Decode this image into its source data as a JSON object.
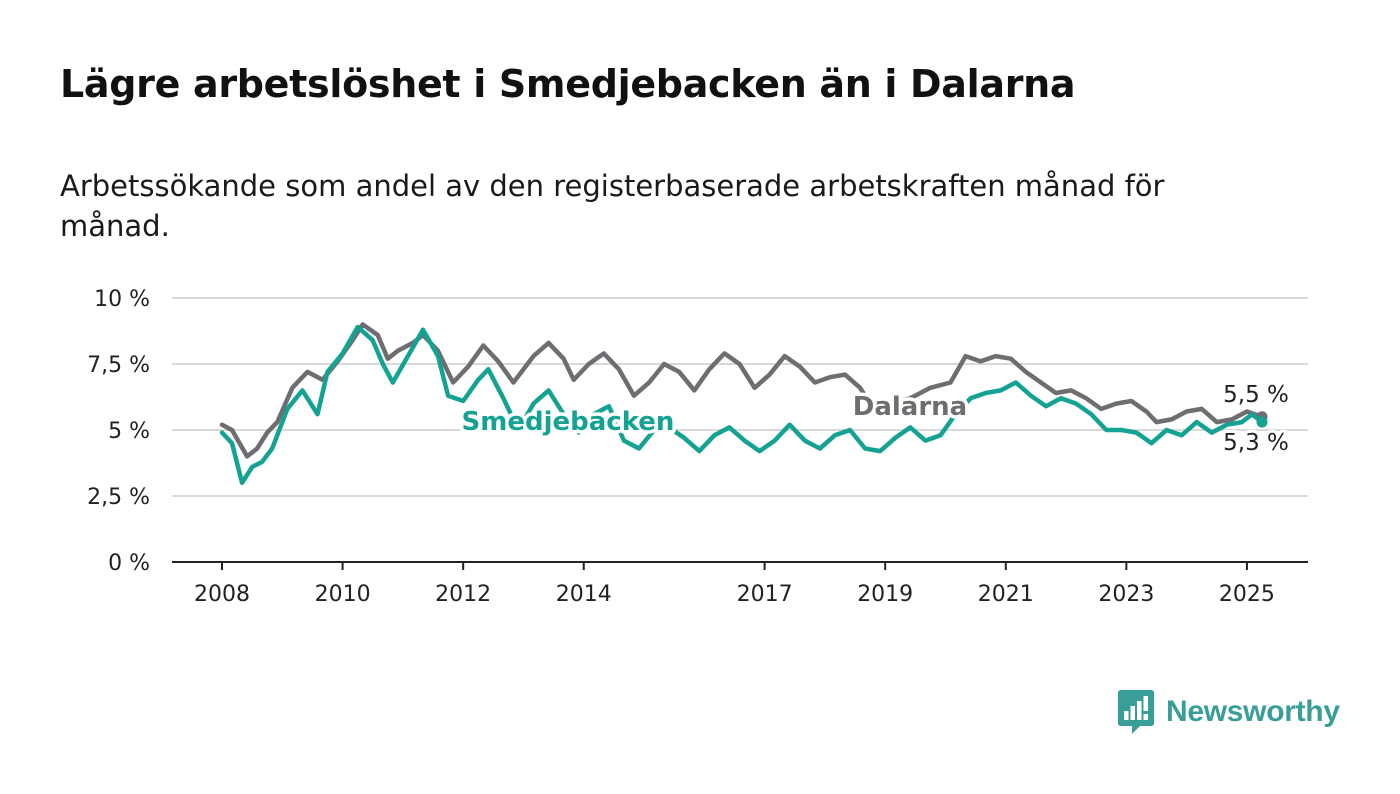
{
  "title": "Lägre arbetslöshet i Smedjebacken än i Dalarna",
  "subtitle": "Arbetssökande som andel av den registerbaserade arbetskraften månad för månad.",
  "brand": {
    "name": "Newsworthy",
    "icon": "newsworthy-bar-chart-icon"
  },
  "colors": {
    "smedjebacken": "#14a393",
    "dalarna": "#6e6e72",
    "grid": "#d9d9d9",
    "axis": "#222222"
  },
  "chart_data": {
    "type": "line",
    "y_unit": "%",
    "ylim": [
      0,
      10
    ],
    "y_ticks": [
      {
        "value": 0,
        "label": "0 %"
      },
      {
        "value": 2.5,
        "label": "2,5 %"
      },
      {
        "value": 5,
        "label": "5 %"
      },
      {
        "value": 7.5,
        "label": "7,5 %"
      },
      {
        "value": 10,
        "label": "10 %"
      }
    ],
    "x_range": [
      "2008-01",
      "2025-04"
    ],
    "x_ticks": [
      {
        "year": 2008,
        "label": "2008"
      },
      {
        "year": 2010,
        "label": "2010"
      },
      {
        "year": 2012,
        "label": "2012"
      },
      {
        "year": 2014,
        "label": "2014"
      },
      {
        "year": 2017,
        "label": "2017"
      },
      {
        "year": 2019,
        "label": "2019"
      },
      {
        "year": 2021,
        "label": "2021"
      },
      {
        "year": 2023,
        "label": "2023"
      },
      {
        "year": 2025,
        "label": "2025"
      }
    ],
    "grid": true,
    "series": [
      {
        "name": "Dalarna",
        "key": "dalarna",
        "end_label": "5,5 %",
        "points": [
          [
            "2008-01",
            5.2
          ],
          [
            "2008-03",
            5.0
          ],
          [
            "2008-06",
            4.0
          ],
          [
            "2008-08",
            4.3
          ],
          [
            "2008-10",
            4.9
          ],
          [
            "2008-12",
            5.3
          ],
          [
            "2009-03",
            6.6
          ],
          [
            "2009-06",
            7.2
          ],
          [
            "2009-09",
            6.9
          ],
          [
            "2009-12",
            7.6
          ],
          [
            "2010-03",
            8.4
          ],
          [
            "2010-05",
            9.0
          ],
          [
            "2010-08",
            8.6
          ],
          [
            "2010-10",
            7.7
          ],
          [
            "2010-12",
            8.0
          ],
          [
            "2011-03",
            8.3
          ],
          [
            "2011-05",
            8.6
          ],
          [
            "2011-08",
            8.0
          ],
          [
            "2011-11",
            6.8
          ],
          [
            "2012-02",
            7.4
          ],
          [
            "2012-05",
            8.2
          ],
          [
            "2012-08",
            7.6
          ],
          [
            "2012-11",
            6.8
          ],
          [
            "2013-03",
            7.8
          ],
          [
            "2013-06",
            8.3
          ],
          [
            "2013-09",
            7.7
          ],
          [
            "2013-11",
            6.9
          ],
          [
            "2014-02",
            7.5
          ],
          [
            "2014-05",
            7.9
          ],
          [
            "2014-08",
            7.3
          ],
          [
            "2014-11",
            6.3
          ],
          [
            "2015-02",
            6.8
          ],
          [
            "2015-05",
            7.5
          ],
          [
            "2015-08",
            7.2
          ],
          [
            "2015-11",
            6.5
          ],
          [
            "2016-02",
            7.3
          ],
          [
            "2016-05",
            7.9
          ],
          [
            "2016-08",
            7.5
          ],
          [
            "2016-11",
            6.6
          ],
          [
            "2017-02",
            7.1
          ],
          [
            "2017-05",
            7.8
          ],
          [
            "2017-08",
            7.4
          ],
          [
            "2017-11",
            6.8
          ],
          [
            "2018-02",
            7.0
          ],
          [
            "2018-05",
            7.1
          ],
          [
            "2018-08",
            6.6
          ],
          [
            "2018-10",
            6.0
          ],
          [
            "2019-02",
            6.0
          ],
          [
            "2019-06",
            6.2
          ],
          [
            "2019-10",
            6.6
          ],
          [
            "2020-02",
            6.8
          ],
          [
            "2020-05",
            7.8
          ],
          [
            "2020-08",
            7.6
          ],
          [
            "2020-11",
            7.8
          ],
          [
            "2021-02",
            7.7
          ],
          [
            "2021-05",
            7.2
          ],
          [
            "2021-08",
            6.8
          ],
          [
            "2021-11",
            6.4
          ],
          [
            "2022-02",
            6.5
          ],
          [
            "2022-05",
            6.2
          ],
          [
            "2022-08",
            5.8
          ],
          [
            "2022-11",
            6.0
          ],
          [
            "2023-02",
            6.1
          ],
          [
            "2023-05",
            5.7
          ],
          [
            "2023-07",
            5.3
          ],
          [
            "2023-10",
            5.4
          ],
          [
            "2024-01",
            5.7
          ],
          [
            "2024-04",
            5.8
          ],
          [
            "2024-07",
            5.3
          ],
          [
            "2024-10",
            5.4
          ],
          [
            "2025-01",
            5.7
          ],
          [
            "2025-04",
            5.5
          ]
        ]
      },
      {
        "name": "Smedjebacken",
        "key": "smedjebacken",
        "end_label": "5,3 %",
        "points": [
          [
            "2008-01",
            4.9
          ],
          [
            "2008-03",
            4.5
          ],
          [
            "2008-05",
            3.0
          ],
          [
            "2008-07",
            3.6
          ],
          [
            "2008-09",
            3.8
          ],
          [
            "2008-11",
            4.3
          ],
          [
            "2009-02",
            5.8
          ],
          [
            "2009-05",
            6.5
          ],
          [
            "2009-08",
            5.6
          ],
          [
            "2009-10",
            7.2
          ],
          [
            "2010-01",
            7.9
          ],
          [
            "2010-04",
            8.9
          ],
          [
            "2010-07",
            8.4
          ],
          [
            "2010-09",
            7.5
          ],
          [
            "2010-11",
            6.8
          ],
          [
            "2011-02",
            7.8
          ],
          [
            "2011-05",
            8.8
          ],
          [
            "2011-08",
            7.8
          ],
          [
            "2011-10",
            6.3
          ],
          [
            "2012-01",
            6.1
          ],
          [
            "2012-04",
            6.9
          ],
          [
            "2012-06",
            7.3
          ],
          [
            "2012-09",
            6.2
          ],
          [
            "2012-12",
            5.0
          ],
          [
            "2013-03",
            6.0
          ],
          [
            "2013-06",
            6.5
          ],
          [
            "2013-09",
            5.6
          ],
          [
            "2013-12",
            4.9
          ],
          [
            "2014-03",
            5.6
          ],
          [
            "2014-06",
            5.9
          ],
          [
            "2014-09",
            4.6
          ],
          [
            "2014-12",
            4.3
          ],
          [
            "2015-03",
            5.0
          ],
          [
            "2015-06",
            5.1
          ],
          [
            "2015-09",
            4.7
          ],
          [
            "2015-12",
            4.2
          ],
          [
            "2016-03",
            4.8
          ],
          [
            "2016-06",
            5.1
          ],
          [
            "2016-09",
            4.6
          ],
          [
            "2016-12",
            4.2
          ],
          [
            "2017-03",
            4.6
          ],
          [
            "2017-06",
            5.2
          ],
          [
            "2017-09",
            4.6
          ],
          [
            "2017-12",
            4.3
          ],
          [
            "2018-03",
            4.8
          ],
          [
            "2018-06",
            5.0
          ],
          [
            "2018-09",
            4.3
          ],
          [
            "2018-12",
            4.2
          ],
          [
            "2019-03",
            4.7
          ],
          [
            "2019-06",
            5.1
          ],
          [
            "2019-09",
            4.6
          ],
          [
            "2019-12",
            4.8
          ],
          [
            "2020-03",
            5.6
          ],
          [
            "2020-06",
            6.2
          ],
          [
            "2020-09",
            6.4
          ],
          [
            "2020-12",
            6.5
          ],
          [
            "2021-03",
            6.8
          ],
          [
            "2021-06",
            6.3
          ],
          [
            "2021-09",
            5.9
          ],
          [
            "2021-12",
            6.2
          ],
          [
            "2022-03",
            6.0
          ],
          [
            "2022-06",
            5.6
          ],
          [
            "2022-09",
            5.0
          ],
          [
            "2022-12",
            5.0
          ],
          [
            "2023-03",
            4.9
          ],
          [
            "2023-06",
            4.5
          ],
          [
            "2023-09",
            5.0
          ],
          [
            "2023-12",
            4.8
          ],
          [
            "2024-03",
            5.3
          ],
          [
            "2024-06",
            4.9
          ],
          [
            "2024-09",
            5.2
          ],
          [
            "2024-12",
            5.3
          ],
          [
            "2025-02",
            5.6
          ],
          [
            "2025-04",
            5.3
          ]
        ]
      }
    ],
    "annotations": [
      {
        "series": "smedjebacken",
        "text": "Smedjebacken"
      },
      {
        "series": "dalarna",
        "text": "Dalarna"
      }
    ]
  }
}
